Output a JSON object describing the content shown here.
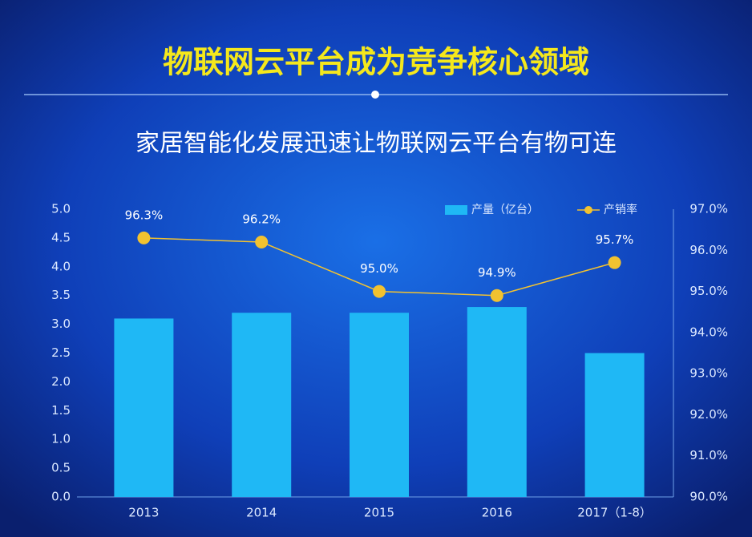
{
  "chart_data": {
    "type": "bar_line",
    "title": "物联网云平台成为竞争核心领域",
    "subtitle": "家居智能化发展迅速让物联网云平台有物可连",
    "categories": [
      "2013",
      "2014",
      "2015",
      "2016",
      "2017（1-8）"
    ],
    "series": [
      {
        "name": "产量（亿台）",
        "type": "bar",
        "color": "#1fb8f5",
        "values": [
          3.1,
          3.2,
          3.2,
          3.3,
          2.5
        ]
      },
      {
        "name": "产销率",
        "type": "line",
        "axis": "y2",
        "color": "#f2c230",
        "values": [
          96.3,
          96.2,
          95.0,
          94.9,
          95.7
        ],
        "value_labels": [
          "96.3%",
          "96.2%",
          "95.0%",
          "94.9%",
          "95.7%"
        ]
      }
    ],
    "ylim": [
      0,
      5
    ],
    "yticks": [
      {
        "value": 0,
        "label": "0.0"
      },
      0.5,
      {
        "value": 1,
        "label": "1.0"
      },
      1.5,
      {
        "value": 2,
        "label": "2.0"
      },
      2.5,
      {
        "value": 3,
        "label": "3.0"
      },
      3.5,
      {
        "value": 4,
        "label": "4.0"
      },
      4.5,
      {
        "value": 5,
        "label": "5.0"
      }
    ],
    "y2lim": [
      90,
      97
    ],
    "y2ticks": [
      {
        "value": 90,
        "label": "90.0%"
      },
      {
        "value": 91,
        "label": "91.0%"
      },
      {
        "value": 92,
        "label": "92.0%"
      },
      {
        "value": 93,
        "label": "93.0%"
      },
      {
        "value": 94,
        "label": "94.0%"
      },
      {
        "value": 95,
        "label": "95.0%"
      },
      {
        "value": 96,
        "label": "96.0%"
      },
      {
        "value": 97,
        "label": "97.0%"
      }
    ]
  }
}
